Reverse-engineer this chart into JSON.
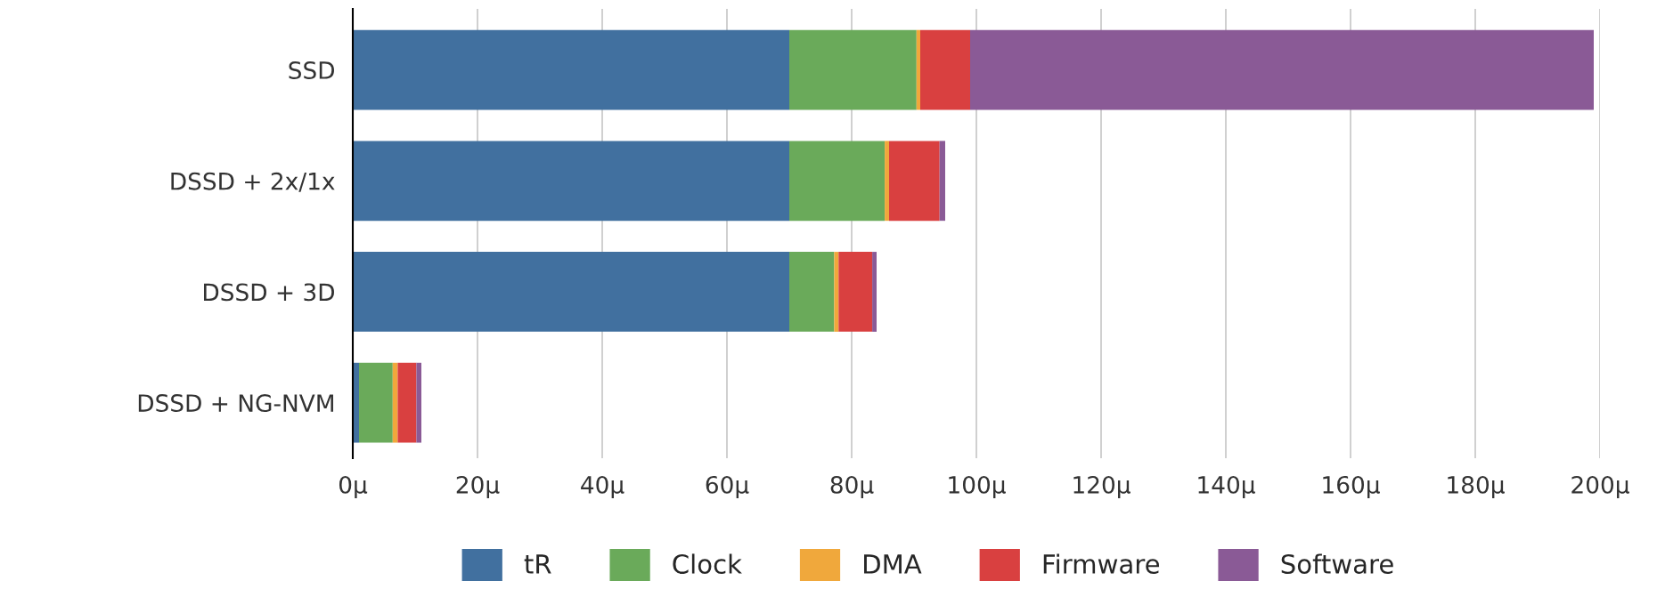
{
  "chart_data": {
    "type": "bar",
    "orientation": "horizontal",
    "stacked": true,
    "categories": [
      "SSD",
      "DSSD + 2x/1x",
      "DSSD + 3D",
      "DSSD + NG-NVM"
    ],
    "series": [
      {
        "name": "tR",
        "color": "#41709f",
        "values": [
          70,
          70,
          70,
          1
        ]
      },
      {
        "name": "Clock",
        "color": "#6aaa5a",
        "values": [
          20.4,
          15.3,
          7.2,
          5.4
        ]
      },
      {
        "name": "DMA",
        "color": "#f0a83c",
        "values": [
          0.6,
          0.7,
          0.7,
          0.8
        ]
      },
      {
        "name": "Firmware",
        "color": "#d94040",
        "values": [
          8,
          8.1,
          5.4,
          3.0
        ]
      },
      {
        "name": "Software",
        "color": "#8a5a96",
        "values": [
          100,
          0.9,
          0.7,
          0.8
        ]
      }
    ],
    "xlim": [
      0,
      200
    ],
    "xticks": [
      {
        "value": 0,
        "label": "0µ"
      },
      {
        "value": 20,
        "label": "20µ"
      },
      {
        "value": 40,
        "label": "40µ"
      },
      {
        "value": 60,
        "label": "60µ"
      },
      {
        "value": 80,
        "label": "80µ"
      },
      {
        "value": 100,
        "label": "100µ"
      },
      {
        "value": 120,
        "label": "120µ"
      },
      {
        "value": 140,
        "label": "140µ"
      },
      {
        "value": 160,
        "label": "160µ"
      },
      {
        "value": 180,
        "label": "180µ"
      },
      {
        "value": 200,
        "label": "200µ"
      }
    ],
    "grid": "x",
    "legend": "bottom"
  }
}
